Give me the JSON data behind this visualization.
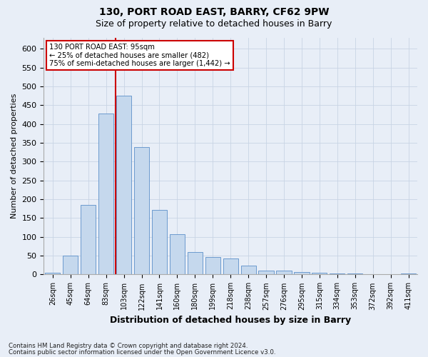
{
  "title1": "130, PORT ROAD EAST, BARRY, CF62 9PW",
  "title2": "Size of property relative to detached houses in Barry",
  "xlabel": "Distribution of detached houses by size in Barry",
  "ylabel": "Number of detached properties",
  "categories": [
    "26sqm",
    "45sqm",
    "64sqm",
    "83sqm",
    "103sqm",
    "122sqm",
    "141sqm",
    "160sqm",
    "180sqm",
    "199sqm",
    "218sqm",
    "238sqm",
    "257sqm",
    "276sqm",
    "295sqm",
    "315sqm",
    "334sqm",
    "353sqm",
    "372sqm",
    "392sqm",
    "411sqm"
  ],
  "values": [
    5,
    50,
    185,
    428,
    476,
    338,
    172,
    107,
    60,
    46,
    42,
    23,
    11,
    11,
    6,
    4,
    3,
    2,
    1,
    1,
    2
  ],
  "bar_color": "#c5d8ed",
  "bar_edge_color": "#5b8fc9",
  "grid_color": "#c8d4e4",
  "background_color": "#e8eef7",
  "marker_label": "130 PORT ROAD EAST: 95sqm",
  "annotation_line1": "← 25% of detached houses are smaller (482)",
  "annotation_line2": "75% of semi-detached houses are larger (1,442) →",
  "annotation_box_color": "#ffffff",
  "annotation_border_color": "#cc0000",
  "marker_line_color": "#cc0000",
  "footnote1": "Contains HM Land Registry data © Crown copyright and database right 2024.",
  "footnote2": "Contains public sector information licensed under the Open Government Licence v3.0.",
  "ylim_max": 630,
  "ytick_max": 600,
  "ytick_step": 50
}
